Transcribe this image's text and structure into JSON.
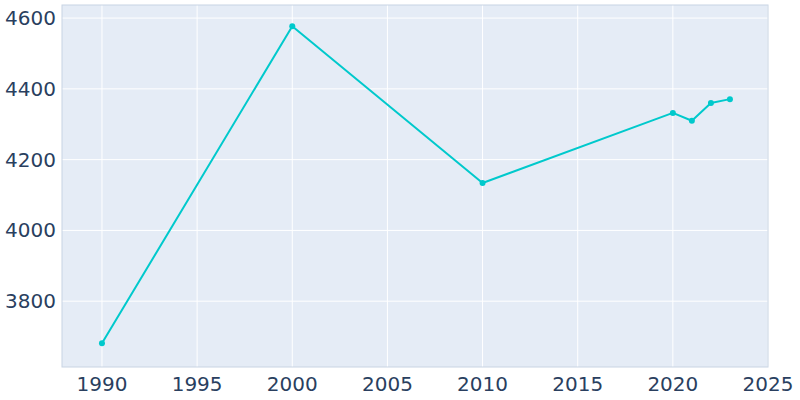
{
  "chart_data": {
    "type": "line",
    "x": [
      1990,
      2000,
      2010,
      2020,
      2021,
      2022,
      2023
    ],
    "values": [
      3681,
      4577,
      4134,
      4332,
      4310,
      4360,
      4371
    ],
    "color": "#00c9cc",
    "marker": "circle",
    "xlim": [
      1987.9,
      2025
    ],
    "xticks": [
      1990,
      1995,
      2000,
      2005,
      2010,
      2015,
      2020,
      2025
    ],
    "ylim": [
      3614,
      4637
    ],
    "yticks": [
      3800,
      4000,
      4200,
      4400,
      4600
    ],
    "grid": true
  }
}
